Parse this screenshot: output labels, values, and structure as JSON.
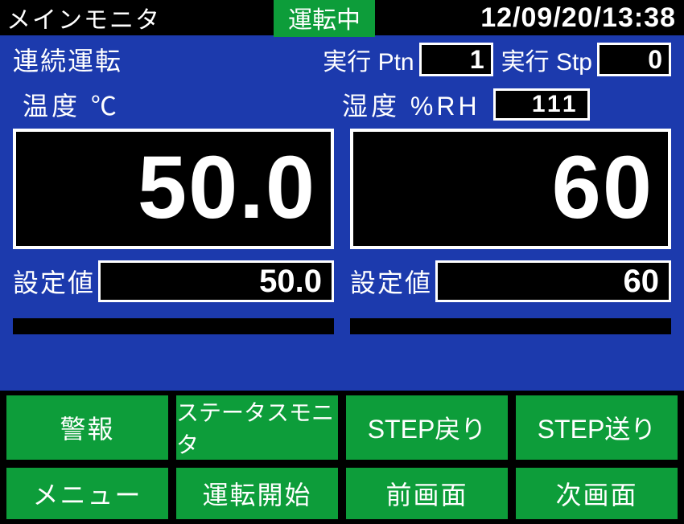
{
  "header": {
    "title": "メインモニタ",
    "status": "運転中",
    "datetime": "12/09/20/13:38"
  },
  "run": {
    "mode": "連続運転",
    "ptn_label": "実行 Ptn",
    "ptn_value": "1",
    "stp_label": "実行 Stp",
    "stp_value": "0"
  },
  "temp": {
    "label": "温度 ℃",
    "value": "50.0",
    "set_label": "設定値",
    "set_value": "50.0"
  },
  "humid": {
    "label": "湿度 %RH",
    "aux_value": "111",
    "value": "60",
    "set_label": "設定値",
    "set_value": "60"
  },
  "buttons": {
    "alarm": "警報",
    "status_monitor": "ステータスモニタ",
    "step_back": "STEP戻り",
    "step_fwd": "STEP送り",
    "menu": "メニュー",
    "start": "運転開始",
    "prev_screen": "前画面",
    "next_screen": "次画面"
  },
  "colors": {
    "bg_main": "#1c3aad",
    "bg_black": "#000000",
    "green": "#0d9d3a",
    "white": "#ffffff"
  }
}
